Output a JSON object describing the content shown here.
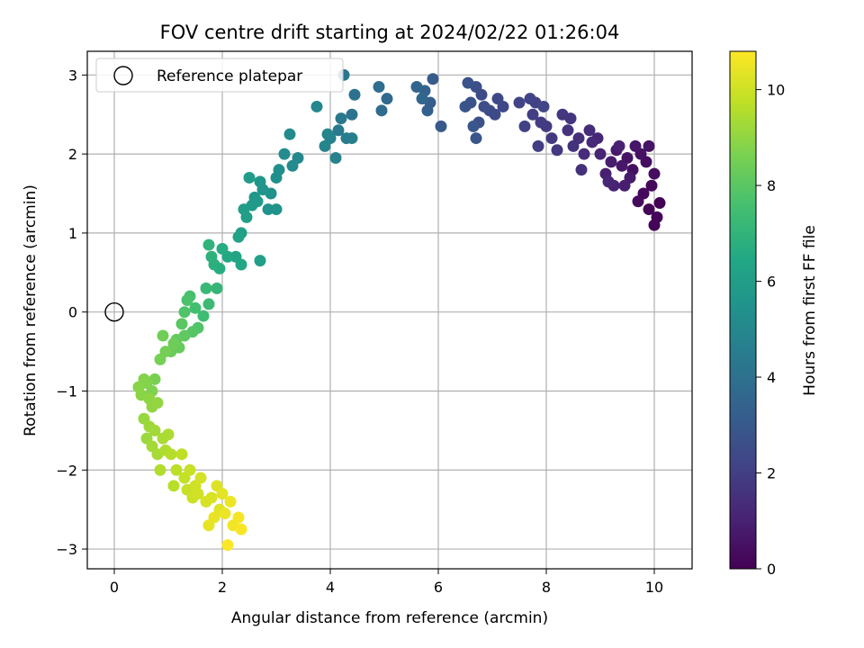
{
  "chart_data": {
    "type": "scatter",
    "title": "FOV centre drift starting at 2024/02/22 01:26:04",
    "xlabel": "Angular distance from reference (arcmin)",
    "ylabel": "Rotation from reference (arcmin)",
    "xlim": [
      -0.5,
      10.7
    ],
    "ylim": [
      -3.25,
      3.3
    ],
    "xticks": [
      0,
      2,
      4,
      6,
      8,
      10
    ],
    "yticks": [
      -3,
      -2,
      -1,
      0,
      1,
      2,
      3
    ],
    "grid": true,
    "legend": {
      "placement": "top-left",
      "entries": [
        "Reference platepar"
      ]
    },
    "reference_point": {
      "x": 0,
      "y": 0,
      "label": "Reference platepar"
    },
    "colorbar": {
      "label": "Hours from first FF file",
      "range": [
        0,
        10.8
      ],
      "ticks": [
        0,
        2,
        4,
        6,
        8,
        10
      ],
      "colormap": "viridis"
    },
    "points": [
      [
        10.1,
        1.38,
        0.0
      ],
      [
        10.0,
        1.1,
        0.05
      ],
      [
        9.9,
        1.3,
        0.1
      ],
      [
        10.05,
        1.2,
        0.15
      ],
      [
        9.8,
        1.5,
        0.2
      ],
      [
        9.95,
        1.6,
        0.25
      ],
      [
        9.7,
        1.4,
        0.3
      ],
      [
        10.0,
        1.75,
        0.35
      ],
      [
        9.85,
        1.9,
        0.4
      ],
      [
        9.6,
        1.8,
        0.45
      ],
      [
        9.75,
        2.0,
        0.5
      ],
      [
        9.9,
        2.1,
        0.55
      ],
      [
        9.5,
        1.95,
        0.6
      ],
      [
        9.65,
        2.1,
        0.65
      ],
      [
        9.4,
        1.85,
        0.7
      ],
      [
        9.3,
        2.05,
        0.75
      ],
      [
        9.55,
        1.7,
        0.8
      ],
      [
        9.2,
        1.9,
        0.85
      ],
      [
        9.45,
        1.6,
        0.9
      ],
      [
        9.1,
        1.75,
        0.95
      ],
      [
        9.35,
        2.1,
        1.0
      ],
      [
        9.25,
        1.6,
        1.05
      ],
      [
        9.0,
        2.0,
        1.1
      ],
      [
        9.15,
        1.65,
        1.15
      ],
      [
        8.95,
        2.2,
        1.2
      ],
      [
        8.85,
        2.15,
        1.3
      ],
      [
        8.7,
        2.0,
        1.35
      ],
      [
        8.8,
        2.3,
        1.4
      ],
      [
        8.6,
        2.2,
        1.45
      ],
      [
        8.65,
        1.8,
        1.5
      ],
      [
        8.5,
        2.1,
        1.55
      ],
      [
        8.4,
        2.3,
        1.6
      ],
      [
        8.45,
        2.45,
        1.65
      ],
      [
        8.3,
        2.5,
        1.7
      ],
      [
        8.2,
        2.05,
        1.75
      ],
      [
        8.1,
        2.2,
        1.8
      ],
      [
        8.0,
        2.35,
        1.85
      ],
      [
        7.9,
        2.4,
        1.9
      ],
      [
        7.85,
        2.1,
        1.95
      ],
      [
        7.75,
        2.5,
        2.0
      ],
      [
        7.8,
        2.65,
        2.05
      ],
      [
        7.6,
        2.35,
        2.1
      ],
      [
        7.7,
        2.7,
        2.15
      ],
      [
        7.5,
        2.65,
        2.2
      ],
      [
        7.95,
        2.6,
        2.25
      ],
      [
        7.2,
        2.6,
        2.3
      ],
      [
        7.1,
        2.7,
        2.35
      ],
      [
        7.05,
        2.5,
        2.4
      ],
      [
        6.95,
        2.55,
        2.45
      ],
      [
        6.8,
        2.75,
        2.5
      ],
      [
        6.85,
        2.6,
        2.55
      ],
      [
        6.7,
        2.85,
        2.6
      ],
      [
        6.75,
        2.4,
        2.65
      ],
      [
        6.6,
        2.65,
        2.7
      ],
      [
        6.55,
        2.9,
        2.75
      ],
      [
        6.5,
        2.6,
        2.8
      ],
      [
        6.7,
        2.2,
        2.85
      ],
      [
        6.65,
        2.35,
        2.9
      ],
      [
        6.05,
        2.35,
        3.0
      ],
      [
        5.9,
        2.95,
        3.1
      ],
      [
        5.85,
        2.65,
        3.2
      ],
      [
        5.8,
        2.55,
        3.3
      ],
      [
        5.75,
        2.8,
        3.4
      ],
      [
        5.6,
        2.85,
        3.5
      ],
      [
        5.7,
        2.7,
        3.6
      ],
      [
        5.05,
        2.7,
        3.7
      ],
      [
        4.95,
        2.55,
        3.8
      ],
      [
        4.9,
        2.85,
        3.9
      ],
      [
        4.45,
        2.75,
        4.0
      ],
      [
        4.4,
        2.5,
        4.1
      ],
      [
        4.25,
        3.0,
        4.2
      ],
      [
        4.2,
        2.45,
        4.3
      ],
      [
        4.15,
        2.3,
        4.4
      ],
      [
        4.3,
        2.2,
        4.5
      ],
      [
        4.4,
        2.2,
        4.6
      ],
      [
        4.0,
        2.2,
        4.7
      ],
      [
        4.1,
        1.95,
        4.8
      ],
      [
        3.9,
        2.1,
        4.85
      ],
      [
        3.95,
        2.25,
        4.9
      ],
      [
        3.75,
        2.6,
        4.95
      ],
      [
        3.4,
        1.95,
        5.0
      ],
      [
        3.3,
        1.85,
        5.1
      ],
      [
        3.25,
        2.25,
        5.15
      ],
      [
        3.15,
        2.0,
        5.2
      ],
      [
        3.05,
        1.8,
        5.3
      ],
      [
        3.0,
        1.7,
        5.35
      ],
      [
        2.9,
        1.5,
        5.4
      ],
      [
        2.85,
        1.3,
        5.45
      ],
      [
        3.0,
        1.3,
        5.5
      ],
      [
        2.75,
        1.55,
        5.6
      ],
      [
        2.7,
        1.65,
        5.65
      ],
      [
        2.6,
        1.45,
        5.7
      ],
      [
        2.65,
        1.4,
        5.8
      ],
      [
        2.55,
        1.35,
        5.85
      ],
      [
        2.5,
        1.7,
        5.9
      ],
      [
        2.4,
        1.3,
        5.95
      ],
      [
        2.45,
        1.2,
        6.0
      ],
      [
        2.7,
        0.65,
        6.05
      ],
      [
        2.35,
        1.0,
        6.1
      ],
      [
        2.3,
        0.95,
        6.2
      ],
      [
        2.25,
        0.7,
        6.3
      ],
      [
        2.35,
        0.6,
        6.4
      ],
      [
        2.1,
        0.7,
        6.5
      ],
      [
        2.0,
        0.8,
        6.6
      ],
      [
        1.95,
        0.55,
        6.7
      ],
      [
        1.85,
        0.6,
        6.8
      ],
      [
        1.8,
        0.7,
        6.9
      ],
      [
        1.75,
        0.85,
        7.0
      ],
      [
        1.9,
        0.3,
        7.1
      ],
      [
        1.7,
        0.3,
        7.2
      ],
      [
        1.75,
        0.1,
        7.3
      ],
      [
        1.65,
        -0.05,
        7.4
      ],
      [
        1.5,
        0.05,
        7.5
      ],
      [
        1.4,
        0.2,
        7.6
      ],
      [
        1.35,
        0.15,
        7.7
      ],
      [
        1.3,
        0.0,
        7.8
      ],
      [
        1.55,
        -0.2,
        7.85
      ],
      [
        1.45,
        -0.25,
        7.9
      ],
      [
        1.25,
        -0.15,
        8.0
      ],
      [
        1.3,
        -0.3,
        8.1
      ],
      [
        1.15,
        -0.35,
        8.2
      ],
      [
        1.2,
        -0.45,
        8.25
      ],
      [
        1.05,
        -0.5,
        8.3
      ],
      [
        1.1,
        -0.4,
        8.4
      ],
      [
        0.9,
        -0.3,
        8.45
      ],
      [
        0.95,
        -0.5,
        8.5
      ],
      [
        0.85,
        -0.6,
        8.55
      ],
      [
        0.75,
        -0.85,
        8.6
      ],
      [
        0.7,
        -1.0,
        8.7
      ],
      [
        0.6,
        -0.9,
        8.75
      ],
      [
        0.55,
        -0.85,
        8.8
      ],
      [
        0.45,
        -0.95,
        8.85
      ],
      [
        0.5,
        -1.05,
        8.9
      ],
      [
        0.65,
        -1.1,
        8.95
      ],
      [
        0.7,
        -1.2,
        9.0
      ],
      [
        0.8,
        -1.15,
        9.05
      ],
      [
        0.55,
        -1.35,
        9.1
      ],
      [
        0.6,
        -1.6,
        9.15
      ],
      [
        0.65,
        -1.45,
        9.2
      ],
      [
        0.75,
        -1.5,
        9.25
      ],
      [
        0.7,
        -1.7,
        9.3
      ],
      [
        0.8,
        -1.8,
        9.35
      ],
      [
        0.9,
        -1.6,
        9.4
      ],
      [
        1.0,
        -1.55,
        9.45
      ],
      [
        0.95,
        -1.75,
        9.5
      ],
      [
        0.85,
        -2.0,
        9.55
      ],
      [
        1.05,
        -1.8,
        9.6
      ],
      [
        1.1,
        -2.2,
        9.65
      ],
      [
        1.15,
        -2.0,
        9.7
      ],
      [
        1.25,
        -1.8,
        9.75
      ],
      [
        1.3,
        -2.1,
        9.8
      ],
      [
        1.35,
        -2.25,
        9.85
      ],
      [
        1.4,
        -2.0,
        9.9
      ],
      [
        1.45,
        -2.35,
        9.95
      ],
      [
        1.5,
        -2.2,
        10.0
      ],
      [
        1.55,
        -2.3,
        10.05
      ],
      [
        1.6,
        -2.1,
        10.1
      ],
      [
        1.7,
        -2.4,
        10.15
      ],
      [
        1.8,
        -2.35,
        10.2
      ],
      [
        1.9,
        -2.2,
        10.25
      ],
      [
        1.95,
        -2.5,
        10.3
      ],
      [
        2.0,
        -2.3,
        10.35
      ],
      [
        1.75,
        -2.7,
        10.4
      ],
      [
        1.85,
        -2.6,
        10.45
      ],
      [
        2.05,
        -2.55,
        10.5
      ],
      [
        2.15,
        -2.4,
        10.55
      ],
      [
        2.2,
        -2.7,
        10.6
      ],
      [
        2.3,
        -2.6,
        10.65
      ],
      [
        2.35,
        -2.75,
        10.7
      ],
      [
        2.1,
        -2.95,
        10.75
      ]
    ]
  }
}
